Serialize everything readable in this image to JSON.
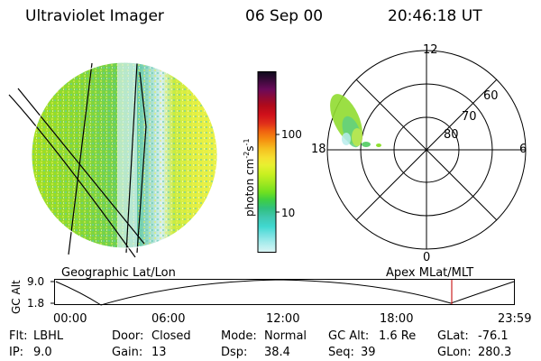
{
  "header": {
    "title": "Ultraviolet Imager",
    "date": "06 Sep 00",
    "time": "20:46:18 UT"
  },
  "colorbar": {
    "label": "photon cm",
    "label_sup1": "-2",
    "label_mid": "s",
    "label_sup2": "-1",
    "tick_labels": [
      "100",
      "10"
    ],
    "colors": [
      "#0b0b1a",
      "#3a0a3a",
      "#6a0a5a",
      "#8a0a3a",
      "#b00a1a",
      "#d0101a",
      "#e0301a",
      "#f06010",
      "#f59010",
      "#f5c020",
      "#f5e030",
      "#e8f030",
      "#c8f020",
      "#a0e820",
      "#70e020",
      "#40d040",
      "#30c080",
      "#40c8b0",
      "#40d8d0",
      "#70e0e0",
      "#a8ecec",
      "#d8f4f4"
    ]
  },
  "images": {
    "left_caption": "Geographic Lat/Lon",
    "right_caption": "Apex MLat/MLT"
  },
  "polar": {
    "mlt_labels": [
      "12",
      "6",
      "0",
      "18"
    ],
    "lat_labels": [
      "60",
      "70",
      "80"
    ]
  },
  "altitude_plot": {
    "ylabel": "GC Alt",
    "yticks": [
      "9.0",
      "1.8"
    ],
    "xticks": [
      "00:00",
      "06:00",
      "12:00",
      "18:00",
      "23:59"
    ],
    "marker_color": "#cc2222"
  },
  "footer": {
    "flt_label": "Flt:",
    "flt_value": "LBHL",
    "ip_label": "IP:",
    "ip_value": "9.0",
    "door_label": "Door:",
    "door_value": "Closed",
    "gain_label": "Gain:",
    "gain_value": "13",
    "mode_label": "Mode:",
    "mode_value": "Normal",
    "dsp_label": "Dsp:",
    "dsp_value": "38.4",
    "gcalt_label": "GC Alt:",
    "gcalt_value": "1.6 Re",
    "seq_label": "Seq:",
    "seq_value": "39",
    "glat_label": "GLat:",
    "glat_value": "-76.1",
    "glon_label": "GLon:",
    "glon_value": "280.3"
  }
}
